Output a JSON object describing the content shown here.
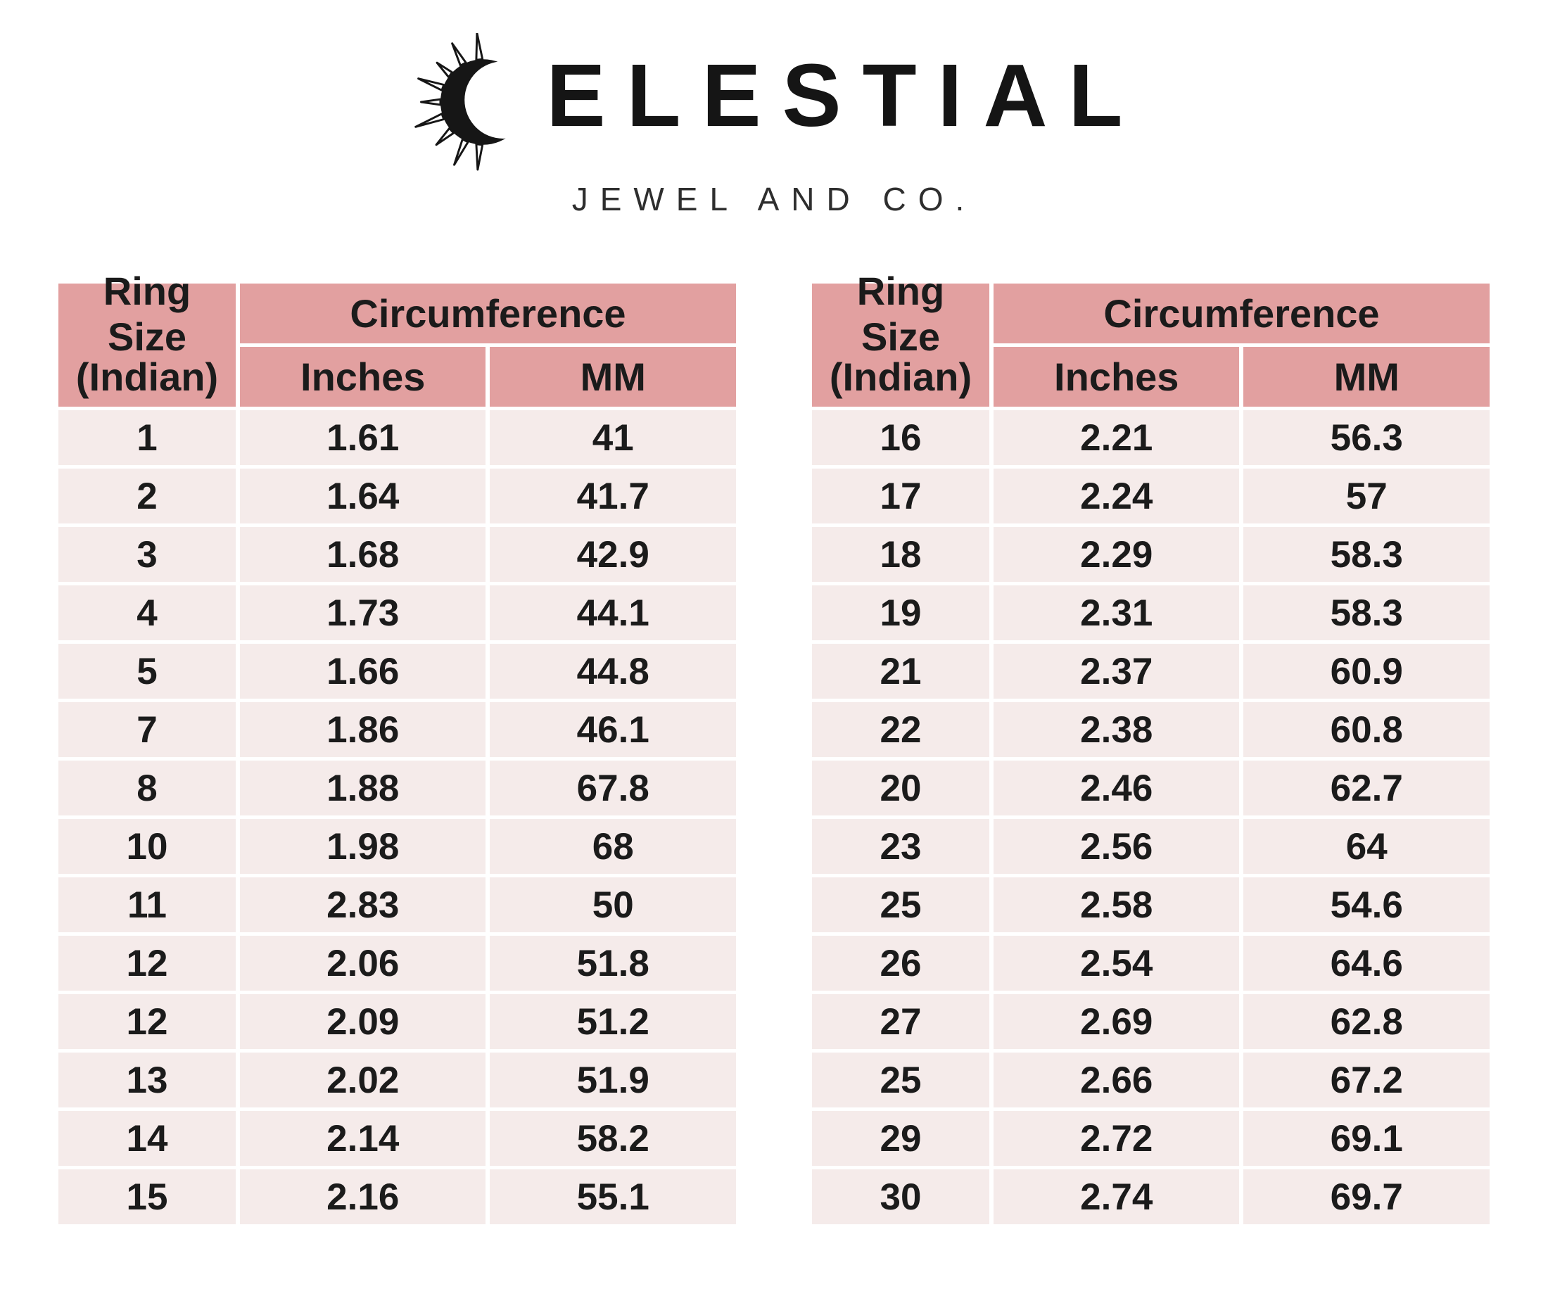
{
  "brand": {
    "name": "CELESTIAL",
    "wordmark_visible_text": "ELESTIAL",
    "icon": "sun-crescent-icon",
    "subtitle": "JEWEL AND CO."
  },
  "size_chart": {
    "header": {
      "ring_size_line1": "Ring Size",
      "ring_size_line2": "(Indian)",
      "circumference": "Circumference",
      "inches": "Inches",
      "mm": "MM"
    },
    "left_table": {
      "rows": [
        [
          "1",
          "1.61",
          "41"
        ],
        [
          "2",
          "1.64",
          "41.7"
        ],
        [
          "3",
          "1.68",
          "42.9"
        ],
        [
          "4",
          "1.73",
          "44.1"
        ],
        [
          "5",
          "1.66",
          "44.8"
        ],
        [
          "7",
          "1.86",
          "46.1"
        ],
        [
          "8",
          "1.88",
          "67.8"
        ],
        [
          "10",
          "1.98",
          "68"
        ],
        [
          "11",
          "2.83",
          "50"
        ],
        [
          "12",
          "2.06",
          "51.8"
        ],
        [
          "12",
          "2.09",
          "51.2"
        ],
        [
          "13",
          "2.02",
          "51.9"
        ],
        [
          "14",
          "2.14",
          "58.2"
        ],
        [
          "15",
          "2.16",
          "55.1"
        ]
      ]
    },
    "right_table": {
      "rows": [
        [
          "16",
          "2.21",
          "56.3"
        ],
        [
          "17",
          "2.24",
          "57"
        ],
        [
          "18",
          "2.29",
          "58.3"
        ],
        [
          "19",
          "2.31",
          "58.3"
        ],
        [
          "21",
          "2.37",
          "60.9"
        ],
        [
          "22",
          "2.38",
          "60.8"
        ],
        [
          "20",
          "2.46",
          "62.7"
        ],
        [
          "23",
          "2.56",
          "64"
        ],
        [
          "25",
          "2.58",
          "54.6"
        ],
        [
          "26",
          "2.54",
          "64.6"
        ],
        [
          "27",
          "2.69",
          "62.8"
        ],
        [
          "25",
          "2.66",
          "67.2"
        ],
        [
          "29",
          "2.72",
          "69.1"
        ],
        [
          "30",
          "2.74",
          "69.7"
        ]
      ]
    }
  },
  "colors": {
    "header_bg": "#e2a0a0",
    "row_bg": "#f5ebea",
    "page_bg": "#ffffff",
    "text": "#1b1b1b"
  },
  "chart_data": {
    "type": "table",
    "title": "CELESTIAL JEWEL AND CO. ring size conversion chart",
    "columns": [
      "Ring Size (Indian)",
      "Circumference Inches",
      "Circumference MM"
    ],
    "rows": [
      [
        1,
        1.61,
        41
      ],
      [
        2,
        1.64,
        41.7
      ],
      [
        3,
        1.68,
        42.9
      ],
      [
        4,
        1.73,
        44.1
      ],
      [
        5,
        1.66,
        44.8
      ],
      [
        7,
        1.86,
        46.1
      ],
      [
        8,
        1.88,
        67.8
      ],
      [
        10,
        1.98,
        68
      ],
      [
        11,
        2.83,
        50
      ],
      [
        12,
        2.06,
        51.8
      ],
      [
        12,
        2.09,
        51.2
      ],
      [
        13,
        2.02,
        51.9
      ],
      [
        14,
        2.14,
        58.2
      ],
      [
        15,
        2.16,
        55.1
      ],
      [
        16,
        2.21,
        56.3
      ],
      [
        17,
        2.24,
        57
      ],
      [
        18,
        2.29,
        58.3
      ],
      [
        19,
        2.31,
        58.3
      ],
      [
        21,
        2.37,
        60.9
      ],
      [
        22,
        2.38,
        60.8
      ],
      [
        20,
        2.46,
        62.7
      ],
      [
        23,
        2.56,
        64
      ],
      [
        25,
        2.58,
        54.6
      ],
      [
        26,
        2.54,
        64.6
      ],
      [
        27,
        2.69,
        62.8
      ],
      [
        25,
        2.66,
        67.2
      ],
      [
        29,
        2.72,
        69.1
      ],
      [
        30,
        2.74,
        69.7
      ]
    ],
    "layout": "two side-by-side tables of 14 rows each; pink header band, light-pink zebra-free rows separated by white gridlines"
  }
}
